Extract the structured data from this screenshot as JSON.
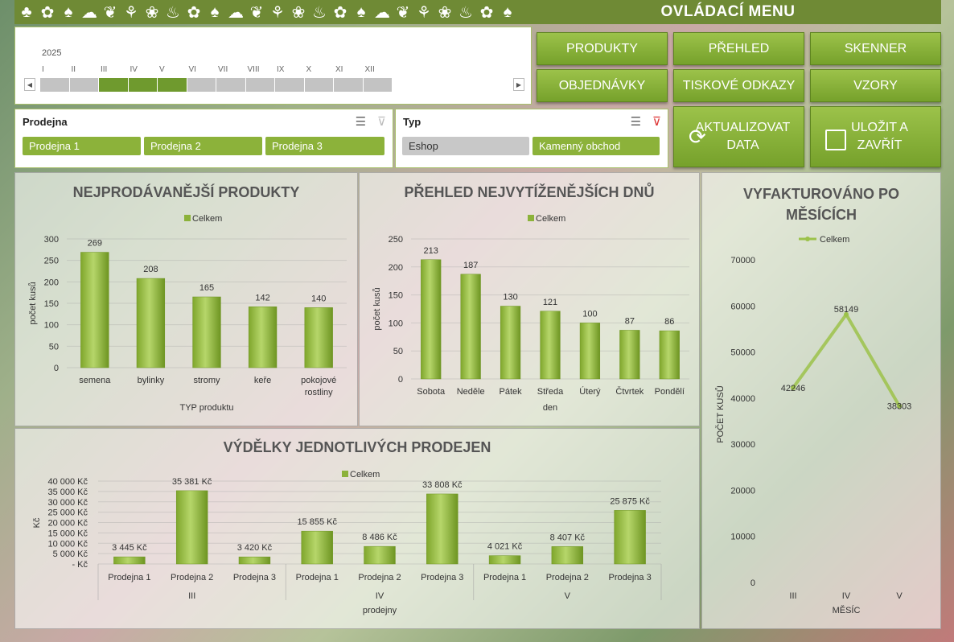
{
  "header": {
    "title": "OVLÁDACÍ MENU",
    "icon_strip": [
      "♣",
      "✿",
      "♠",
      "☁",
      "❦",
      "⚘",
      "❀",
      "♨",
      "✿",
      "♠",
      "☁",
      "❦",
      "⚘",
      "❀",
      "♨",
      "✿",
      "♠",
      "☁",
      "❦",
      "⚘",
      "❀",
      "♨",
      "✿",
      "♠"
    ]
  },
  "timeline": {
    "year": "2025",
    "months": [
      "I",
      "II",
      "III",
      "IV",
      "V",
      "VI",
      "VII",
      "VIII",
      "IX",
      "X",
      "XI",
      "XII"
    ],
    "selected_months": [
      "III",
      "IV",
      "V"
    ],
    "left_arrow": "◀",
    "right_arrow": "▶"
  },
  "slicers": {
    "prodejna": {
      "title": "Prodejna",
      "options": [
        "Prodejna 1",
        "Prodejna 2",
        "Prodejna 3"
      ]
    },
    "typ": {
      "title": "Typ",
      "options": [
        "Eshop",
        "Kamenný obchod"
      ]
    }
  },
  "buttons": {
    "produkty": "PRODUKTY",
    "prehled": "PŘEHLED",
    "skenner": "SKENNER",
    "objednavky": "OBJEDNÁVKY",
    "tiskove": "TISKOVÉ ODKAZY",
    "vzory": "VZORY",
    "aktualizovat_1": "AKTUALIZOVAT",
    "aktualizovat_2": "DATA",
    "ulozit_1": "ULOŽIT A",
    "ulozit_2": "ZAVŘÍT"
  },
  "colors": {
    "accent": "#8cb23a",
    "accent_dark": "#6f8a35",
    "bar": "#9cc24a"
  },
  "chart_data": [
    {
      "type": "bar",
      "title": "NEJPRODÁVANĚJŠÍ PRODUKTY",
      "legend": "Celkem",
      "categories": [
        "semena",
        "bylinky",
        "stromy",
        "keře",
        "pokojové rostliny"
      ],
      "values": [
        269,
        208,
        165,
        142,
        140
      ],
      "xlabel": "TYP produktu",
      "ylabel": "počet kusů",
      "ylim": [
        0,
        300
      ],
      "yticks": [
        0,
        50,
        100,
        150,
        200,
        250,
        300
      ]
    },
    {
      "type": "bar",
      "title": "PŘEHLED NEJVYTÍŽENĚJŠÍCH DNŮ",
      "legend": "Celkem",
      "categories": [
        "Sobota",
        "Neděle",
        "Pátek",
        "Středa",
        "Úterý",
        "Čtvrtek",
        "Pondělí"
      ],
      "values": [
        213,
        187,
        130,
        121,
        100,
        87,
        86
      ],
      "xlabel": "den",
      "ylabel": "počet kusů",
      "ylim": [
        0,
        250
      ],
      "yticks": [
        0,
        50,
        100,
        150,
        200,
        250
      ]
    },
    {
      "type": "line",
      "title": "VYFAKTUROVÁNO PO MĚSÍCÍCH",
      "legend": "Celkem",
      "categories": [
        "III",
        "IV",
        "V"
      ],
      "values": [
        42246,
        58149,
        38303
      ],
      "xlabel": "MĚSÍC",
      "ylabel": "POČET KUSŮ",
      "ylim": [
        0,
        70000
      ],
      "yticks": [
        0,
        10000,
        20000,
        30000,
        40000,
        50000,
        60000,
        70000
      ]
    },
    {
      "type": "bar",
      "title": "VÝDĚLKY JEDNOTLIVÝCH PRODEJEN",
      "legend": "Celkem",
      "groups": [
        "III",
        "IV",
        "V"
      ],
      "categories": [
        "Prodejna 1",
        "Prodejna 2",
        "Prodejna 3",
        "Prodejna 1",
        "Prodejna 2",
        "Prodejna 3",
        "Prodejna 1",
        "Prodejna 2",
        "Prodejna 3"
      ],
      "values": [
        3445,
        35381,
        3420,
        15855,
        8486,
        33808,
        4021,
        8407,
        25875
      ],
      "value_labels": [
        "3 445 Kč",
        "35 381 Kč",
        "3 420 Kč",
        "15 855 Kč",
        "8 486 Kč",
        "33 808 Kč",
        "4 021 Kč",
        "8 407 Kč",
        "25 875 Kč"
      ],
      "xlabel": "prodejny",
      "ylabel": "Kč",
      "ylim": [
        0,
        40000
      ],
      "ytick_labels": [
        "-  Kč",
        "5 000 Kč",
        "10 000 Kč",
        "15 000 Kč",
        "20 000 Kč",
        "25 000 Kč",
        "30 000 Kč",
        "35 000 Kč",
        "40 000 Kč"
      ]
    }
  ]
}
